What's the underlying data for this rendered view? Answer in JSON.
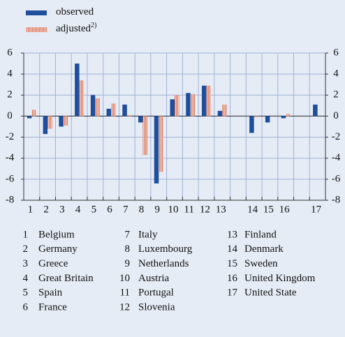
{
  "chart_data": {
    "type": "bar",
    "categories": [
      "1",
      "2",
      "3",
      "4",
      "5",
      "6",
      "7",
      "8",
      "9",
      "10",
      "11",
      "12",
      "13",
      null,
      "14",
      "15",
      "16",
      null,
      "17"
    ],
    "series": [
      {
        "name": "observed",
        "color": "#1f4e9c",
        "values": [
          -0.2,
          -1.7,
          -1.0,
          5.0,
          2.0,
          0.7,
          1.1,
          -0.6,
          -6.4,
          1.6,
          2.2,
          2.9,
          0.5,
          null,
          -1.6,
          -0.6,
          -0.2,
          null,
          1.1
        ]
      },
      {
        "name": "adjusted",
        "note": "2)",
        "color": "#d9735a",
        "values": [
          0.6,
          -1.2,
          -0.9,
          3.4,
          1.7,
          1.2,
          0.1,
          -3.7,
          -5.3,
          2.0,
          2.1,
          2.9,
          1.1,
          null,
          -0.1,
          0.0,
          0.2,
          null,
          null
        ]
      }
    ],
    "ylim": [
      -8,
      6
    ],
    "yticks": [
      -8,
      -6,
      -4,
      -2,
      0,
      2,
      4,
      6
    ],
    "grid": true,
    "country_key": [
      {
        "number": "1",
        "name": "Belgium"
      },
      {
        "number": "2",
        "name": "Germany"
      },
      {
        "number": "3",
        "name": "Greece"
      },
      {
        "number": "4",
        "name": "Great Britain"
      },
      {
        "number": "5",
        "name": "Spain"
      },
      {
        "number": "6",
        "name": "France"
      },
      {
        "number": "7",
        "name": "Italy"
      },
      {
        "number": "8",
        "name": "Luxembourg"
      },
      {
        "number": "9",
        "name": "Netherlands"
      },
      {
        "number": "10",
        "name": "Austria"
      },
      {
        "number": "11",
        "name": "Portugal"
      },
      {
        "number": "12",
        "name": "Slovenia"
      },
      {
        "number": "13",
        "name": "Finland"
      },
      {
        "number": "14",
        "name": "Denmark"
      },
      {
        "number": "15",
        "name": "Sweden"
      },
      {
        "number": "16",
        "name": "United Kingdom"
      },
      {
        "number": "17",
        "name": "United State"
      }
    ]
  }
}
